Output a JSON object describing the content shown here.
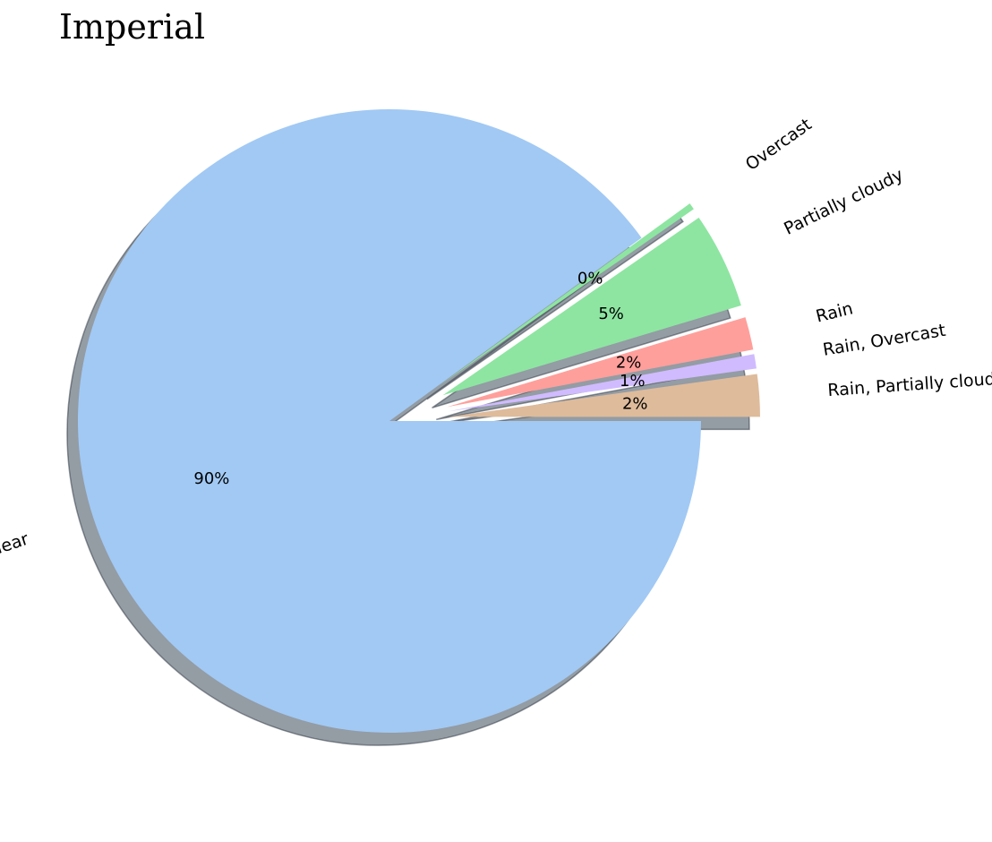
{
  "chart_data": {
    "type": "pie",
    "title": "Imperial",
    "start_angle_deg": 0,
    "direction": "clockwise",
    "shadow": true,
    "slices": [
      {
        "label": "Clear",
        "value": 90.0,
        "pct_label": "90%",
        "color": "#a1c9f4",
        "exploded": false
      },
      {
        "label": "Overcast",
        "value": 0.35,
        "pct_label": "0%",
        "color": "#8de5a1",
        "exploded": true
      },
      {
        "label": "Partially cloudy",
        "value": 5.0,
        "pct_label": "5%",
        "color": "#8de5a1",
        "exploded": true
      },
      {
        "label": "Rain",
        "value": 1.7,
        "pct_label": "2%",
        "color": "#ff9f9b",
        "exploded": true
      },
      {
        "label": "Rain, Overcast",
        "value": 0.75,
        "pct_label": "1%",
        "color": "#d0bbff",
        "exploded": true
      },
      {
        "label": "Rain, Partially cloudy",
        "value": 2.2,
        "pct_label": "2%",
        "color": "#debb9b",
        "exploded": true
      }
    ]
  }
}
